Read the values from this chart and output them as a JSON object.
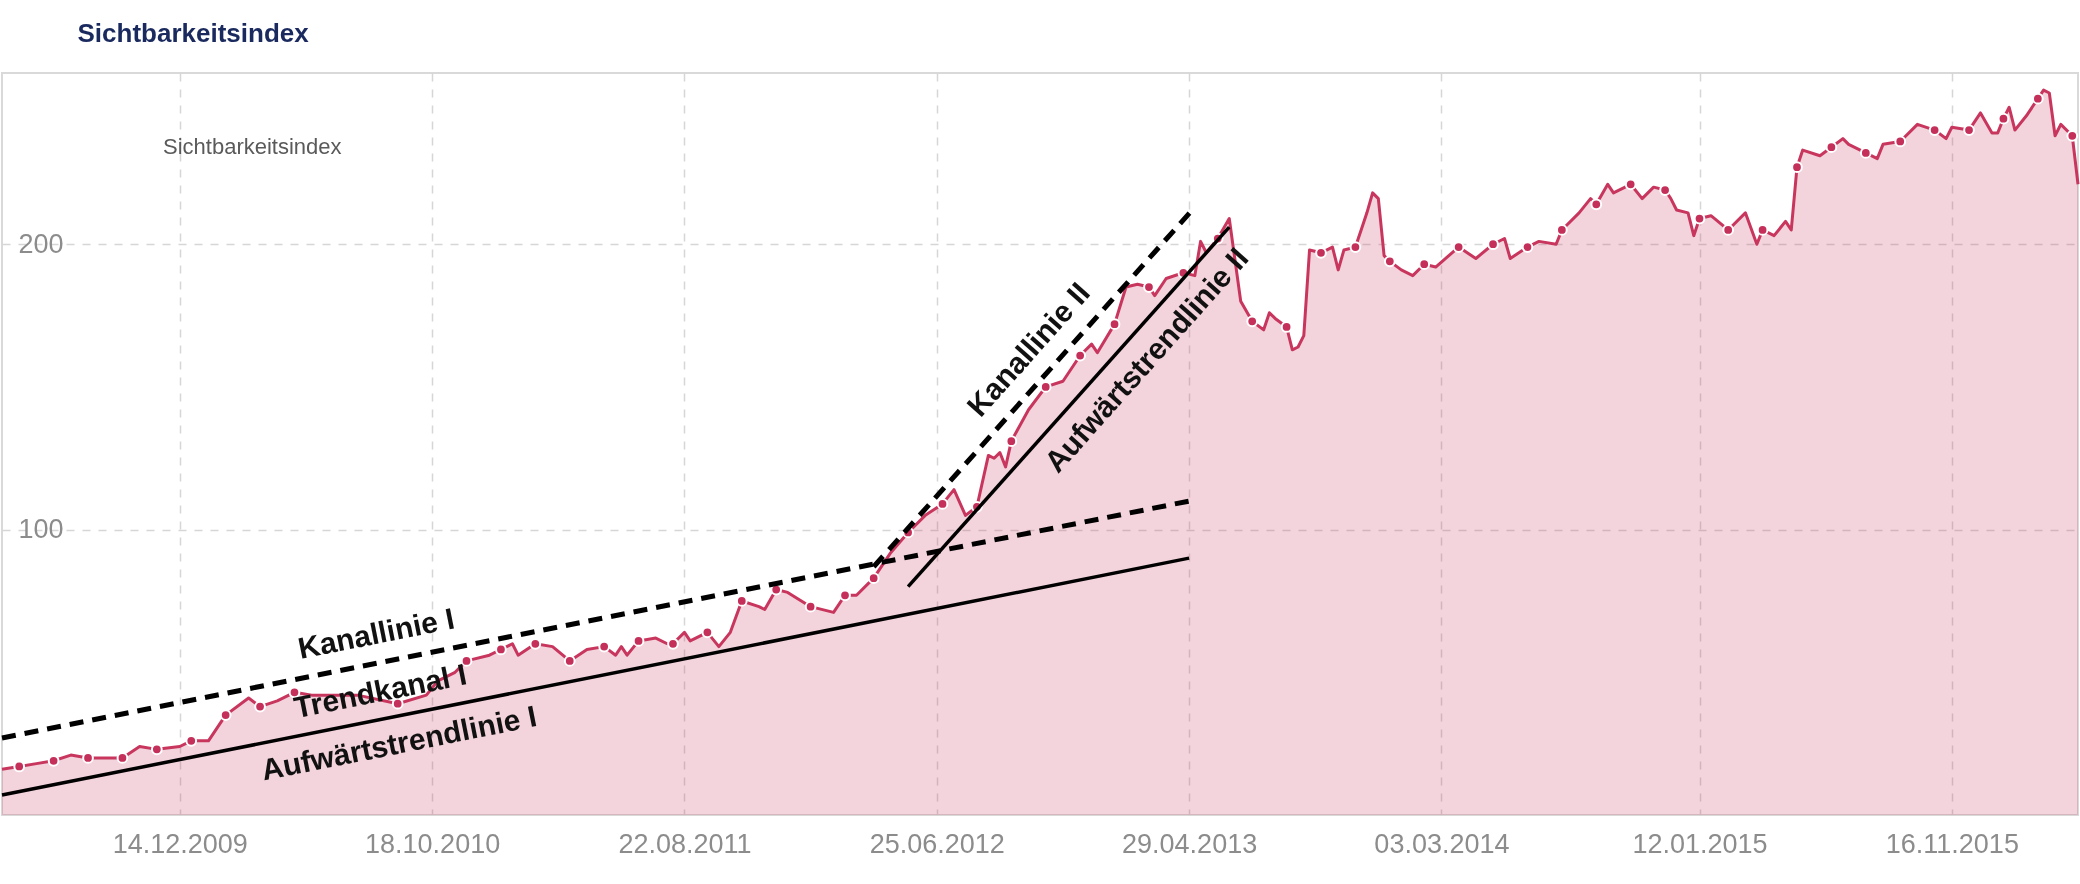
{
  "chart_data": {
    "type": "area",
    "title": "Sichtbarkeitsindex",
    "legend_title": "Sichtbarkeitsindex",
    "grid": true,
    "xlim": [
      "2009-05-11",
      "2016-04-18"
    ],
    "ylim": [
      0,
      260
    ],
    "yticks": [
      100,
      200
    ],
    "xticks": [
      {
        "value": "2009-12-14",
        "label": "14.12.2009"
      },
      {
        "value": "2010-10-18",
        "label": "18.10.2010"
      },
      {
        "value": "2011-08-22",
        "label": "22.08.2011"
      },
      {
        "value": "2012-06-25",
        "label": "25.06.2012"
      },
      {
        "value": "2013-04-29",
        "label": "29.04.2013"
      },
      {
        "value": "2014-03-03",
        "label": "03.03.2014"
      },
      {
        "value": "2015-01-12",
        "label": "12.01.2015"
      },
      {
        "value": "2015-11-16",
        "label": "16.11.2015"
      }
    ],
    "series": [
      {
        "color": "#c8365e",
        "x": [
          "2009-05-11",
          "2009-06-01",
          "2009-06-22",
          "2009-07-13",
          "2009-08-03",
          "2009-08-24",
          "2009-09-14",
          "2009-10-05",
          "2009-10-26",
          "2009-11-16",
          "2009-12-14",
          "2009-12-28",
          "2010-01-18",
          "2010-02-08",
          "2010-03-08",
          "2010-03-22",
          "2010-04-12",
          "2010-05-03",
          "2010-05-24",
          "2010-07-19",
          "2010-09-06",
          "2010-10-11",
          "2010-10-25",
          "2010-11-15",
          "2010-11-29",
          "2010-12-27",
          "2011-01-10",
          "2011-01-24",
          "2011-01-31",
          "2011-02-21",
          "2011-03-14",
          "2011-04-04",
          "2011-04-25",
          "2011-05-16",
          "2011-05-30",
          "2011-06-06",
          "2011-06-13",
          "2011-06-27",
          "2011-07-18",
          "2011-08-01",
          "2011-08-08",
          "2011-08-22",
          "2011-08-29",
          "2011-09-19",
          "2011-10-03",
          "2011-10-17",
          "2011-10-31",
          "2011-11-21",
          "2011-11-28",
          "2011-12-12",
          "2011-12-26",
          "2012-01-23",
          "2012-02-20",
          "2012-03-05",
          "2012-03-19",
          "2012-04-09",
          "2012-04-30",
          "2012-05-21",
          "2012-06-11",
          "2012-07-02",
          "2012-07-16",
          "2012-07-30",
          "2012-08-13",
          "2012-08-27",
          "2012-09-03",
          "2012-09-10",
          "2012-09-17",
          "2012-09-24",
          "2012-10-15",
          "2012-11-05",
          "2012-11-26",
          "2012-12-17",
          "2012-12-31",
          "2013-01-07",
          "2013-01-28",
          "2013-02-11",
          "2013-02-25",
          "2013-03-11",
          "2013-03-18",
          "2013-04-01",
          "2013-04-22",
          "2013-05-06",
          "2013-05-13",
          "2013-05-20",
          "2013-06-03",
          "2013-06-17",
          "2013-07-01",
          "2013-07-15",
          "2013-07-29",
          "2013-08-05",
          "2013-08-12",
          "2013-08-26",
          "2013-09-02",
          "2013-09-09",
          "2013-09-16",
          "2013-09-23",
          "2013-10-07",
          "2013-10-21",
          "2013-10-28",
          "2013-11-04",
          "2013-11-18",
          "2013-11-25",
          "2013-12-02",
          "2013-12-09",
          "2013-12-16",
          "2013-12-23",
          "2013-12-30",
          "2014-01-13",
          "2014-01-27",
          "2014-02-10",
          "2014-02-24",
          "2014-03-24",
          "2014-04-14",
          "2014-05-05",
          "2014-05-19",
          "2014-05-26",
          "2014-06-16",
          "2014-06-30",
          "2014-07-21",
          "2014-07-28",
          "2014-08-18",
          "2014-09-01",
          "2014-09-08",
          "2014-09-22",
          "2014-09-29",
          "2014-10-20",
          "2014-11-03",
          "2014-11-17",
          "2014-12-01",
          "2014-12-08",
          "2014-12-15",
          "2014-12-29",
          "2015-01-05",
          "2015-01-12",
          "2015-01-26",
          "2015-02-16",
          "2015-03-09",
          "2015-03-23",
          "2015-03-30",
          "2015-04-13",
          "2015-04-27",
          "2015-05-04",
          "2015-05-11",
          "2015-05-18",
          "2015-06-08",
          "2015-06-22",
          "2015-07-06",
          "2015-07-13",
          "2015-08-03",
          "2015-08-17",
          "2015-08-24",
          "2015-09-14",
          "2015-10-05",
          "2015-10-26",
          "2015-11-09",
          "2015-11-16",
          "2015-12-07",
          "2015-12-21",
          "2016-01-04",
          "2016-01-11",
          "2016-01-18",
          "2016-01-25",
          "2016-02-01",
          "2016-02-15",
          "2016-02-29",
          "2016-03-07",
          "2016-03-14",
          "2016-03-21",
          "2016-03-28",
          "2016-04-11",
          "2016-04-18"
        ],
        "values": [
          16,
          17,
          18,
          19,
          21,
          20,
          20,
          20,
          24,
          23,
          24,
          26,
          26,
          35,
          41,
          38,
          40,
          43,
          42,
          42,
          39,
          42,
          47,
          50,
          54,
          56,
          58,
          60,
          56,
          60,
          59,
          54,
          58,
          59,
          56,
          59,
          56,
          61,
          62,
          60,
          60,
          64,
          61,
          64,
          59,
          64,
          75,
          73,
          72,
          79,
          78,
          73,
          71,
          77,
          77,
          83,
          92,
          99,
          105,
          109,
          114,
          105,
          108,
          126,
          125,
          127,
          122,
          131,
          142,
          150,
          152,
          161,
          165,
          162,
          172,
          185,
          186,
          185,
          182,
          188,
          190,
          189,
          201,
          197,
          202,
          209,
          180,
          173,
          170,
          176,
          174,
          171,
          163,
          164,
          168,
          198,
          197,
          199,
          191,
          198,
          199,
          205,
          211,
          218,
          216,
          196,
          194,
          191,
          189,
          193,
          192,
          199,
          195,
          200,
          202,
          195,
          199,
          201,
          200,
          205,
          211,
          216,
          214,
          221,
          218,
          221,
          216,
          220,
          219,
          216,
          212,
          211,
          203,
          209,
          210,
          205,
          211,
          200,
          205,
          203,
          208,
          205,
          227,
          233,
          231,
          234,
          237,
          235,
          232,
          230,
          235,
          236,
          242,
          240,
          237,
          241,
          240,
          246,
          239,
          239,
          244,
          248,
          240,
          245,
          251,
          254,
          253,
          238,
          242,
          238,
          221
        ]
      },
      {
        "type": "scatter",
        "color": "#c4305a",
        "marker": "circle",
        "x": [
          "2009-06-01",
          "2009-07-13",
          "2009-08-24",
          "2009-10-05",
          "2009-11-16",
          "2009-12-28",
          "2010-02-08",
          "2010-03-22",
          "2010-05-03",
          "2010-09-06",
          "2010-11-29",
          "2011-01-10",
          "2011-02-21",
          "2011-04-04",
          "2011-05-16",
          "2011-06-27",
          "2011-08-08",
          "2011-09-19",
          "2011-10-31",
          "2011-12-12",
          "2012-01-23",
          "2012-03-05",
          "2012-04-09",
          "2012-05-21",
          "2012-07-02",
          "2012-08-13",
          "2012-09-24",
          "2012-11-05",
          "2012-12-17",
          "2013-01-28",
          "2013-03-11",
          "2013-04-22",
          "2013-06-03",
          "2013-07-15",
          "2013-08-26",
          "2013-10-07",
          "2013-11-18",
          "2013-12-30",
          "2014-02-10",
          "2014-03-24",
          "2014-05-05",
          "2014-06-16",
          "2014-07-28",
          "2014-09-08",
          "2014-10-20",
          "2014-12-01",
          "2015-01-12",
          "2015-02-16",
          "2015-03-30",
          "2015-05-11",
          "2015-06-22",
          "2015-08-03",
          "2015-09-14",
          "2015-10-26",
          "2015-12-07",
          "2016-01-18",
          "2016-02-29",
          "2016-04-11"
        ],
        "values": [
          17,
          19,
          20,
          20,
          23,
          26,
          35,
          38,
          43,
          39,
          54,
          58,
          60,
          54,
          59,
          61,
          60,
          64,
          75,
          79,
          73,
          77,
          83,
          99,
          109,
          108,
          131,
          150,
          161,
          172,
          185,
          190,
          202,
          173,
          171,
          197,
          199,
          194,
          193,
          199,
          200,
          199,
          205,
          214,
          221,
          219,
          209,
          205,
          205,
          227,
          234,
          232,
          236,
          240,
          240,
          244,
          251,
          238
        ]
      },
      {
        "type": "line",
        "name": "Kanallinie I",
        "color": "#000000",
        "line_style": "dashed",
        "x": [
          "2009-05-11",
          "2013-04-29"
        ],
        "values": [
          27,
          110
        ]
      },
      {
        "type": "line",
        "name": "Aufwärtstrendlinie I",
        "color": "#000000",
        "line_style": "solid",
        "x": [
          "2009-05-11",
          "2013-04-29"
        ],
        "values": [
          7,
          90
        ]
      },
      {
        "type": "line",
        "name": "Kanallinie II",
        "color": "#000000",
        "line_style": "dashed",
        "x": [
          "2012-04-09",
          "2013-05-06"
        ],
        "values": [
          87,
          213
        ]
      },
      {
        "type": "line",
        "name": "Aufwärtstrendlinie II",
        "color": "#000000",
        "line_style": "solid",
        "x": [
          "2012-05-21",
          "2013-06-17"
        ],
        "values": [
          80,
          206
        ]
      }
    ],
    "annotations": [
      {
        "text": "Trendkanal I",
        "x": "2010-08-16",
        "y": 43
      }
    ]
  }
}
